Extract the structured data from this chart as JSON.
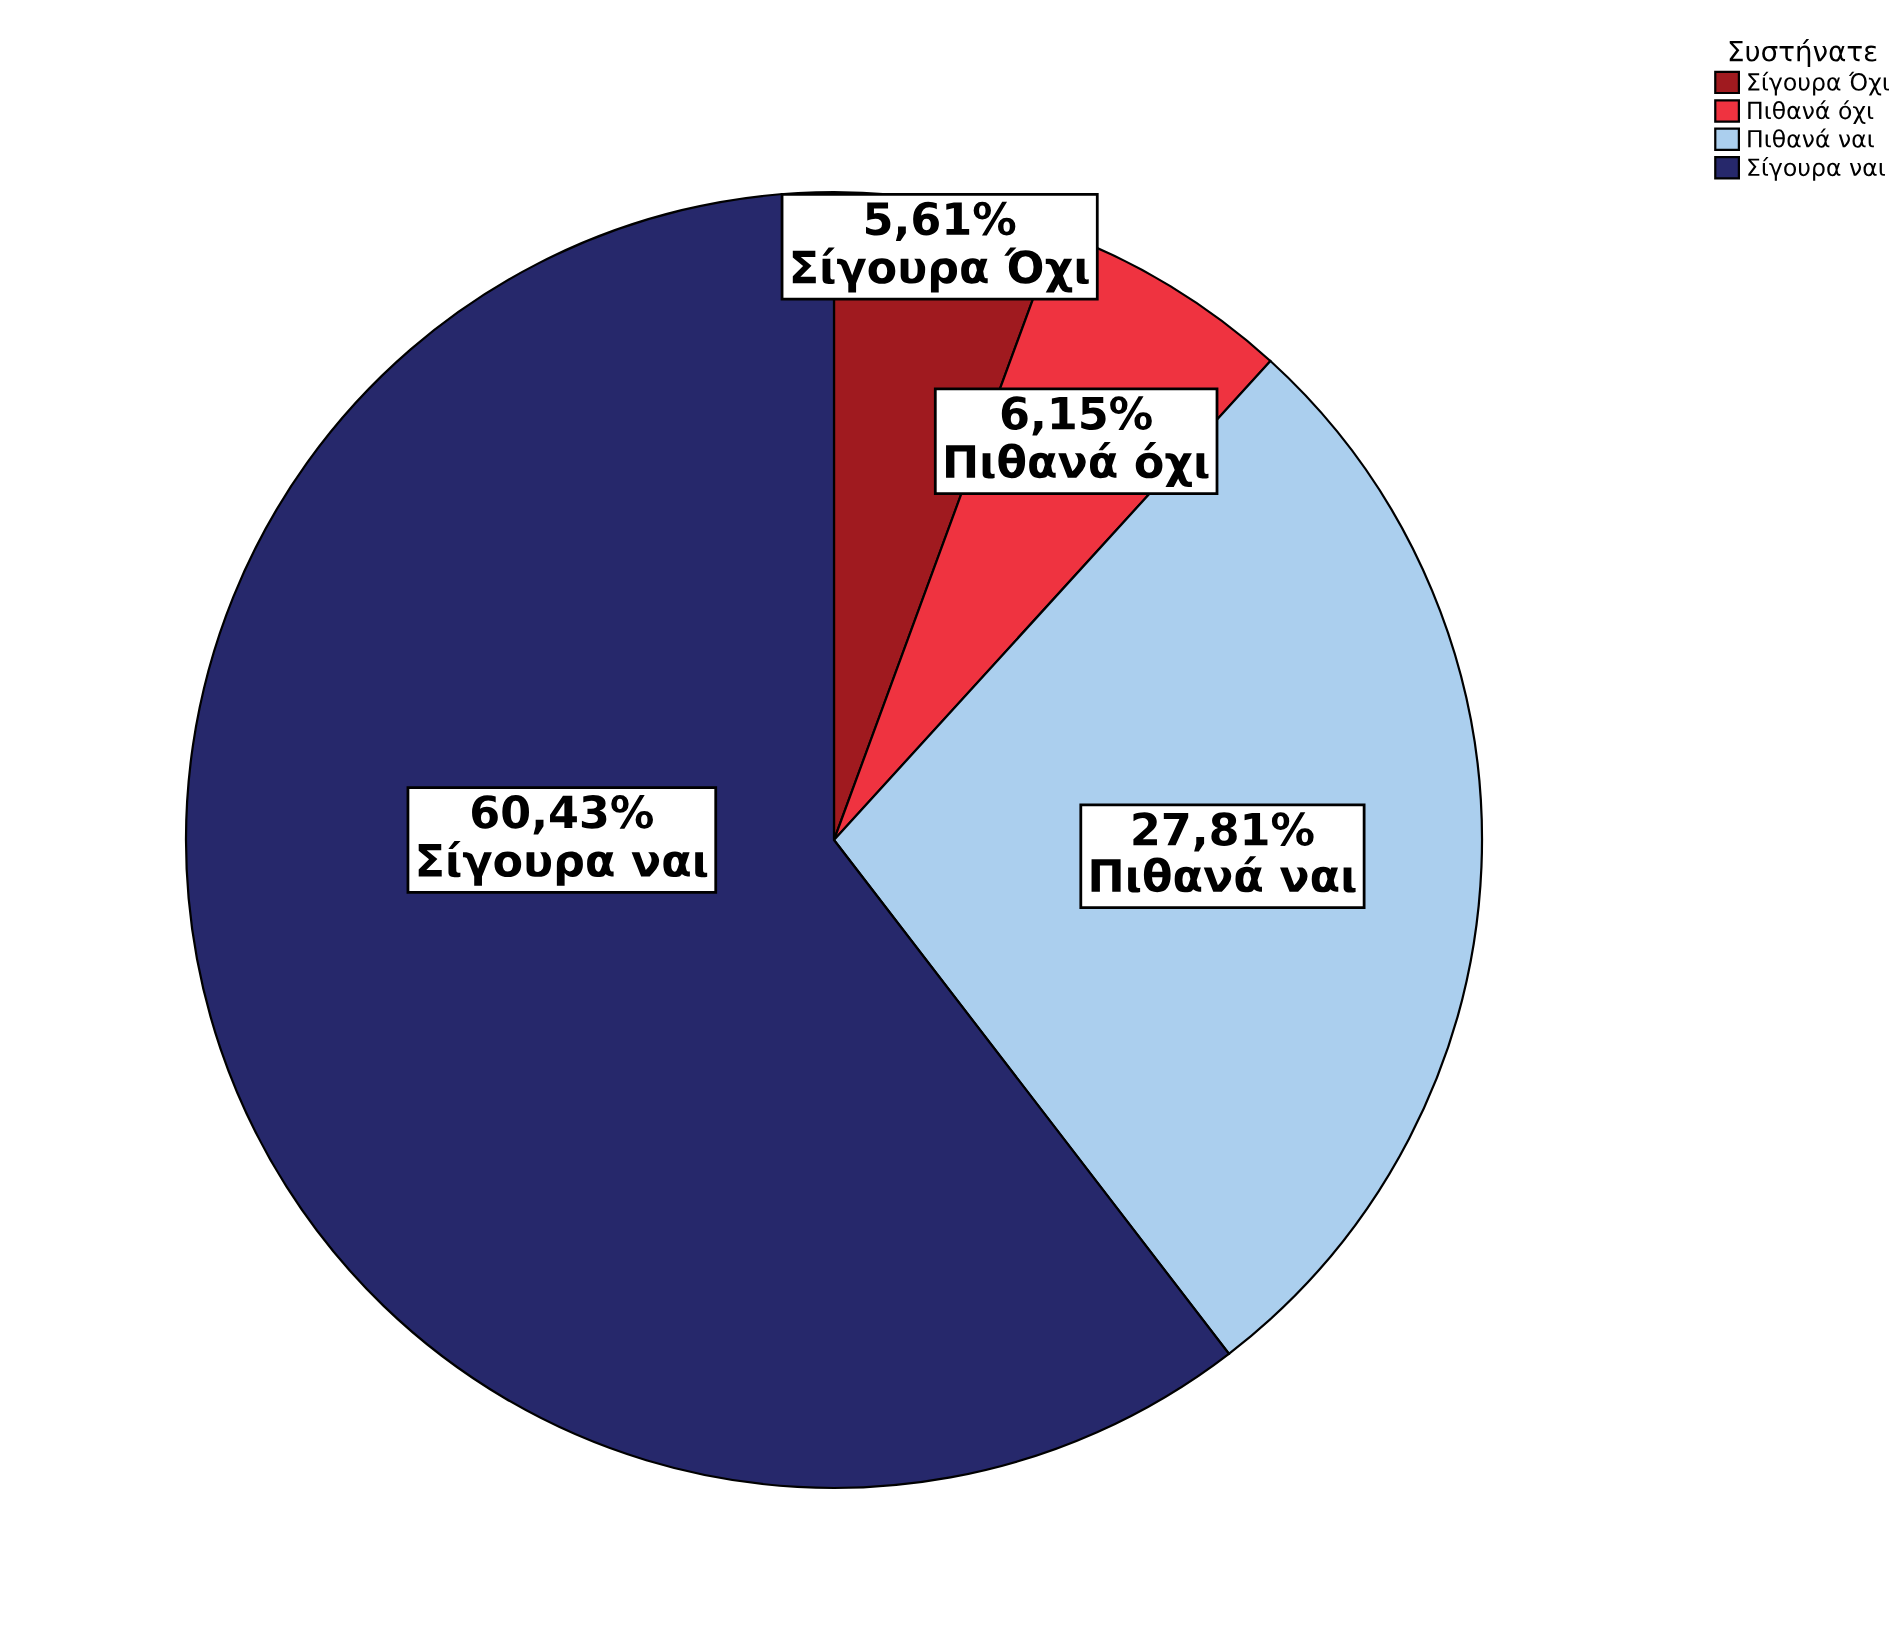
{
  "chart_data": {
    "type": "pie",
    "legend_title": "Συστήνατε",
    "legend": "top right",
    "categories": [
      "Σίγουρα Όχι",
      "Πιθανά όχι",
      "Πιθανά ναι",
      "Σίγουρα ναι"
    ],
    "values": [
      5.61,
      6.15,
      27.81,
      60.43
    ],
    "value_labels": [
      "5,61%",
      "6,15%",
      "27,81%",
      "60,43%"
    ],
    "colors": [
      "#a01a1f",
      "#ef3340",
      "#abcfee",
      "#26286b"
    ]
  }
}
